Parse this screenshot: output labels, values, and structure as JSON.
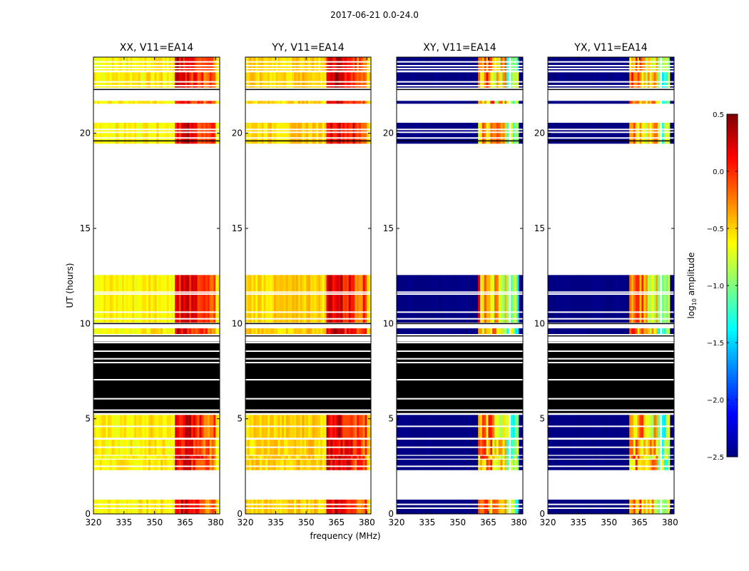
{
  "chart_data": {
    "type": "heatmap",
    "suptitle": "2017-06-21 0.0-24.0",
    "xlabel": "frequency (MHz)",
    "ylabel": "UT (hours)",
    "xlim": [
      320,
      382
    ],
    "ylim": [
      0,
      24
    ],
    "xticks": [
      "320",
      "335",
      "350",
      "365",
      "380"
    ],
    "yticks": [
      "0",
      "5",
      "10",
      "15",
      "20"
    ],
    "colorbar": {
      "label_main": "log",
      "label_sub": "10",
      "label_rest": " amplitude",
      "range": [
        -2.5,
        0.5
      ],
      "ticks": [
        "−2.5",
        "−2.0",
        "−1.5",
        "−1.0",
        "−0.5",
        "0.0",
        "0.5"
      ],
      "colormap": "jet"
    },
    "observed_hours": [
      [
        0.0,
        0.75
      ],
      [
        2.3,
        2.85
      ],
      [
        2.9,
        3.05
      ],
      [
        3.1,
        3.9
      ],
      [
        4.0,
        5.2
      ],
      [
        9.45,
        9.75
      ],
      [
        10.05,
        12.55
      ],
      [
        19.45,
        20.55
      ],
      [
        21.55,
        21.7
      ],
      [
        22.4,
        23.2
      ],
      [
        23.3,
        24.0
      ]
    ],
    "flagged_hours": [
      [
        5.3,
        9.05
      ]
    ],
    "gap_hours": [
      0.3,
      0.5,
      2.5,
      3.5,
      4.6,
      10.25,
      10.6,
      11.55,
      11.65,
      19.75,
      20.05,
      20.2,
      22.5,
      22.7,
      23.4,
      23.55,
      23.75
    ],
    "flag_gap_hours": [
      5.45,
      6.05,
      7.05,
      7.95,
      8.15,
      8.55,
      9.0
    ],
    "series": [
      {
        "name": "XX, V11=EA14",
        "background_log_amp": -0.6,
        "rfi_log_amp": 0.2
      },
      {
        "name": "YY, V11=EA14",
        "background_log_amp": -0.5,
        "rfi_log_amp": 0.25
      },
      {
        "name": "XY, V11=EA14",
        "background_log_amp": -2.5,
        "rfi_log_amp": -0.3
      },
      {
        "name": "YX, V11=EA14",
        "background_log_amp": -2.5,
        "rfi_log_amp": -0.3
      }
    ]
  }
}
